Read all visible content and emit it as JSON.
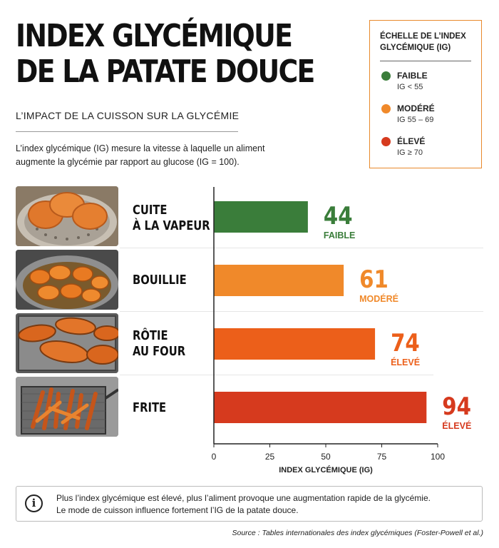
{
  "header": {
    "title_line1": "INDEX GLYCÉMIQUE",
    "title_line2": "DE LA PATATE DOUCE",
    "subtitle": "L’IMPACT DE LA CUISSON SUR LA GLYCÉMIE",
    "intro": "L’index glycémique (IG) mesure la vitesse à laquelle un aliment augmente la glycémie par rapport au glucose (IG = 100)."
  },
  "legend": {
    "title": "ÉCHELLE DE L’INDEX GLYCÉMIQUE (IG)",
    "items": [
      {
        "label": "FAIBLE",
        "range": "IG < 55",
        "color": "#3A7D3A"
      },
      {
        "label": "MODÉRÉ",
        "range": "IG 55 – 69",
        "color": "#F0892A"
      },
      {
        "label": "ÉLEVÉ",
        "range": "IG ≥ 70",
        "color": "#D63A1E"
      }
    ]
  },
  "rows": [
    {
      "label_line1": "CUITE",
      "label_line2": "À LA VAPEUR",
      "photo": "steamed-sweet-potato-photo"
    },
    {
      "label_line1": "BOUILLIE",
      "label_line2": "",
      "photo": "boiled-sweet-potato-photo"
    },
    {
      "label_line1": "RÔTIE",
      "label_line2": "AU FOUR",
      "photo": "roasted-sweet-potato-photo"
    },
    {
      "label_line1": "FRITE",
      "label_line2": "",
      "photo": "fried-sweet-potato-photo"
    }
  ],
  "chart_data": {
    "type": "bar",
    "orientation": "horizontal",
    "categories": [
      "CUITE À LA VAPEUR",
      "BOUILLIE",
      "RÔTIE AU FOUR",
      "FRITE"
    ],
    "values": [
      44,
      61,
      74,
      94
    ],
    "bar_lengths": [
      42,
      58,
      72,
      95
    ],
    "value_labels": [
      "44",
      "61",
      "74",
      "94"
    ],
    "level_labels": [
      "FAIBLE",
      "MODÉRÉ",
      "ÉLEVÉ",
      "ÉLEVÉ"
    ],
    "colors": [
      "#3A7D3A",
      "#F0892A",
      "#EC5F1A",
      "#D63A1E"
    ],
    "label_colors": [
      "#3A7D3A",
      "#F0892A",
      "#EC5F1A",
      "#D63A1E"
    ],
    "xlabel": "INDEX GLYCÉMIQUE (IG)",
    "xlim": [
      0,
      100
    ],
    "xticks": [
      0,
      25,
      50,
      75,
      100
    ],
    "grid": false
  },
  "note": {
    "line1": "Plus l’index glycémique est élevé, plus l’aliment provoque une augmentation rapide de la glycémie.",
    "line2": "Le mode de cuisson influence fortement l’IG de la patate douce."
  },
  "source": "Source : Tables internationales des index glycémiques (Foster-Powell et al.)"
}
